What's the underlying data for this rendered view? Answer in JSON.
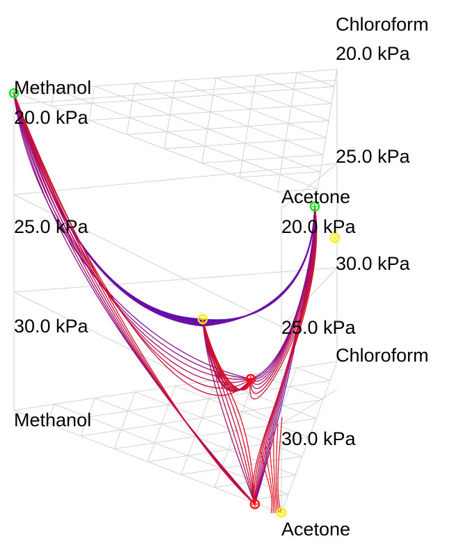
{
  "colors": {
    "grid": "#d2d2d2",
    "curve_start": "#2a0fd0",
    "curve_mid": "#7a0f9e",
    "curve_end": "#e0101a",
    "marker_green": "#22dd22",
    "marker_yellow": "#ffee00",
    "marker_red": "#ff1111",
    "label": "#000000"
  },
  "labels": {
    "chloroform_top": "Chloroform",
    "chloroform_top_p": "20.0 kPa",
    "methanol_top": "Methanol",
    "methanol_top_p": "20.0 kPa",
    "right_p25": "25.0 kPa",
    "acetone_top": "Acetone",
    "acetone_top_p": "20.0 kPa",
    "left_p25": "25.0 kPa",
    "right_p30": "30.0 kPa",
    "left_p30": "30.0 kPa",
    "acetone_mid_p25": "25.0 kPa",
    "chloroform_mid": "Chloroform",
    "methanol_bottom": "Methanol",
    "acetone_bottom_p30": "30.0 kPa",
    "acetone_bottom": "Acetone"
  }
}
